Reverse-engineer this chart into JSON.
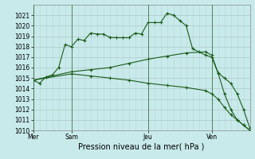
{
  "background_color": "#c8eaea",
  "grid_color": "#b0c8c8",
  "line_color": "#1a5c1a",
  "marker_style": "+",
  "marker_size": 3,
  "linewidth": 0.8,
  "marker_linewidth": 0.8,
  "ylim": [
    1010,
    1022
  ],
  "yticks": [
    1010,
    1011,
    1012,
    1013,
    1014,
    1015,
    1016,
    1017,
    1018,
    1019,
    1020,
    1021
  ],
  "xlabel": "Pression niveau de la mer( hPa )",
  "xlabel_fontsize": 7,
  "tick_fontsize": 5.5,
  "day_labels": [
    "Mer",
    "Sam",
    "Jeu",
    "Ven"
  ],
  "day_positions": [
    0,
    6,
    18,
    28
  ],
  "xlim": [
    0,
    34
  ],
  "vline_positions": [
    0,
    6,
    18,
    28
  ],
  "series1_x": [
    0,
    1,
    2,
    3,
    4,
    5,
    6,
    7,
    8,
    9,
    10,
    11,
    12,
    13,
    14,
    15,
    16,
    17,
    18,
    19,
    20,
    21,
    22,
    23,
    24,
    25,
    26,
    27,
    28,
    29,
    30,
    31,
    32,
    33,
    34
  ],
  "series1_y": [
    1014.8,
    1014.5,
    1015.1,
    1015.3,
    1016.0,
    1018.2,
    1018.0,
    1018.7,
    1018.6,
    1019.3,
    1019.2,
    1019.2,
    1018.9,
    1018.85,
    1018.85,
    1018.85,
    1019.3,
    1019.2,
    1020.3,
    1020.3,
    1020.3,
    1021.2,
    1021.0,
    1020.5,
    1020.0,
    1017.8,
    1017.5,
    1017.2,
    1017.0,
    1015.5,
    1015.0,
    1014.5,
    1013.5,
    1012.0,
    1010.2
  ],
  "series2_x": [
    0,
    6,
    9,
    12,
    15,
    18,
    21,
    24,
    27,
    28,
    29,
    30,
    31,
    32,
    33,
    34
  ],
  "series2_y": [
    1014.8,
    1015.6,
    1015.8,
    1016.0,
    1016.4,
    1016.8,
    1017.1,
    1017.4,
    1017.5,
    1017.2,
    1015.5,
    1013.5,
    1012.0,
    1011.0,
    1010.5,
    1010.0
  ],
  "series3_x": [
    0,
    6,
    9,
    12,
    15,
    18,
    21,
    24,
    27,
    28,
    29,
    30,
    31,
    32,
    33,
    34
  ],
  "series3_y": [
    1014.8,
    1015.4,
    1015.2,
    1015.0,
    1014.8,
    1014.5,
    1014.3,
    1014.1,
    1013.8,
    1013.5,
    1013.0,
    1012.2,
    1011.5,
    1011.0,
    1010.5,
    1010.0
  ]
}
